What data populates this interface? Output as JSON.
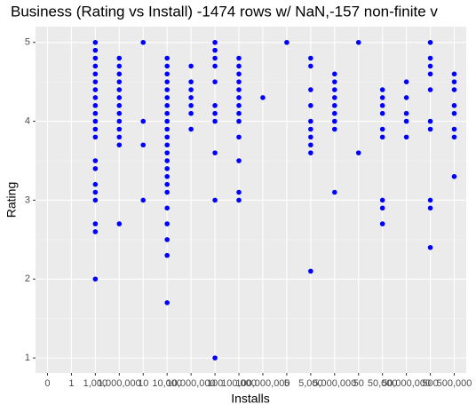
{
  "chart_data": {
    "type": "scatter",
    "title": "Business (Rating vs Install) -1474 rows w/ NaN,-157 non-finite v",
    "x_label": "Installs",
    "y_label": "Rating",
    "color": "#0000ff",
    "grid": true,
    "categories": [
      "0",
      "1",
      "1,000",
      "1,000,000",
      "10",
      "10,000",
      "10,000,000",
      "100",
      "100,000",
      "100,000,000",
      "5",
      "5,000",
      "5,000,000",
      "50",
      "50,000",
      "50,000,000",
      "500",
      "500,000"
    ],
    "values": [
      [],
      [],
      [
        5.0,
        4.9,
        4.8,
        4.7,
        4.6,
        4.5,
        4.4,
        4.3,
        4.2,
        4.1,
        4.0,
        3.9,
        3.8,
        3.5,
        3.4,
        3.2,
        3.1,
        3.0,
        2.7,
        2.6,
        2.0
      ],
      [
        4.8,
        4.7,
        4.6,
        4.5,
        4.4,
        4.3,
        4.2,
        4.1,
        4.0,
        3.9,
        3.8,
        3.7,
        2.7
      ],
      [
        5.0,
        4.0,
        3.7,
        3.0
      ],
      [
        4.8,
        4.7,
        4.6,
        4.5,
        4.4,
        4.3,
        4.2,
        4.1,
        4.0,
        3.9,
        3.8,
        3.7,
        3.6,
        3.5,
        3.4,
        3.3,
        3.2,
        3.1,
        2.9,
        2.7,
        2.5,
        2.3,
        1.7
      ],
      [
        4.7,
        4.5,
        4.4,
        4.3,
        4.2,
        4.1,
        3.9
      ],
      [
        5.0,
        4.9,
        4.8,
        4.7,
        4.5,
        4.2,
        4.1,
        4.0,
        3.6,
        3.0,
        1.0
      ],
      [
        4.8,
        4.7,
        4.6,
        4.5,
        4.4,
        4.3,
        4.2,
        4.1,
        4.0,
        3.8,
        3.5,
        3.1,
        3.0
      ],
      [
        4.3
      ],
      [
        5.0
      ],
      [
        4.8,
        4.7,
        4.4,
        4.2,
        4.0,
        3.9,
        3.8,
        3.7,
        3.6,
        2.1
      ],
      [
        4.6,
        4.5,
        4.4,
        4.3,
        4.2,
        4.1,
        4.0,
        3.9,
        3.1
      ],
      [
        5.0,
        3.6
      ],
      [
        4.4,
        4.3,
        4.2,
        4.1,
        3.9,
        3.8,
        3.0,
        2.9,
        2.7
      ],
      [
        4.5,
        4.3,
        4.1,
        4.0,
        3.8
      ],
      [
        5.0,
        4.8,
        4.7,
        4.6,
        4.4,
        4.0,
        3.9,
        3.0,
        2.9,
        2.4
      ],
      [
        4.6,
        4.5,
        4.4,
        4.2,
        4.1,
        3.9,
        3.8,
        3.3
      ]
    ],
    "ylim": [
      0.81,
      5.2
    ],
    "yticks": [
      1,
      2,
      3,
      4,
      5
    ]
  }
}
